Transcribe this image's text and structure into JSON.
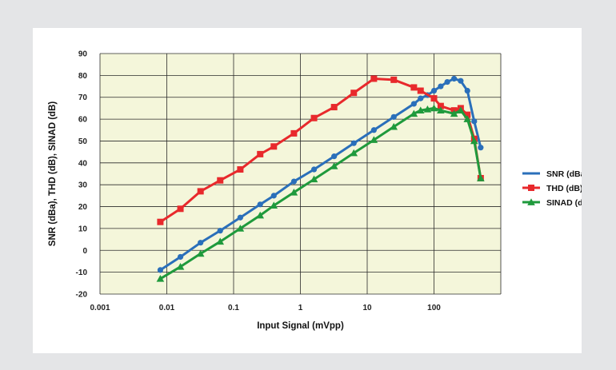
{
  "chart_data": {
    "type": "line",
    "x_scale": "log",
    "xlim": [
      0.001,
      1000
    ],
    "ylim": [
      -20,
      90
    ],
    "grid": true,
    "legend_position": "right",
    "xlabel": "Input Signal (mVpp)",
    "ylabel": "SNR (dBa), THD (dB), SINAD (dB)",
    "x_tick_labels": [
      "0.001",
      "0.01",
      "0.1",
      "1",
      "10",
      "100"
    ],
    "y_tick_labels": [
      "-20",
      "-10",
      "0",
      "10",
      "20",
      "30",
      "40",
      "50",
      "60",
      "70",
      "80",
      "90"
    ],
    "colors": {
      "plot_background": "#f4f6da",
      "grid": "#2b2b2b"
    },
    "series": [
      {
        "name": "SNR (dBa)",
        "color": "#2a6fba",
        "marker": "circle",
        "points": [
          [
            0.008,
            -9
          ],
          [
            0.016,
            -3
          ],
          [
            0.032,
            3.5
          ],
          [
            0.063,
            9
          ],
          [
            0.126,
            15
          ],
          [
            0.25,
            21
          ],
          [
            0.4,
            25
          ],
          [
            0.8,
            31.5
          ],
          [
            1.6,
            37
          ],
          [
            3.2,
            43
          ],
          [
            6.3,
            49
          ],
          [
            12.6,
            55
          ],
          [
            25,
            61
          ],
          [
            50,
            67
          ],
          [
            63,
            69.5
          ],
          [
            80,
            71
          ],
          [
            100,
            73
          ],
          [
            126,
            75
          ],
          [
            158,
            77
          ],
          [
            200,
            78.5
          ],
          [
            251,
            77.5
          ],
          [
            316,
            73
          ],
          [
            400,
            59
          ],
          [
            500,
            47
          ]
        ]
      },
      {
        "name": "THD (dB)",
        "color": "#e8292c",
        "marker": "square",
        "points": [
          [
            0.008,
            13
          ],
          [
            0.016,
            19
          ],
          [
            0.032,
            27
          ],
          [
            0.063,
            32
          ],
          [
            0.126,
            37
          ],
          [
            0.25,
            44
          ],
          [
            0.4,
            47.5
          ],
          [
            0.8,
            53.5
          ],
          [
            1.6,
            60.5
          ],
          [
            3.2,
            65.5
          ],
          [
            6.3,
            72
          ],
          [
            12.6,
            78.5
          ],
          [
            25,
            78
          ],
          [
            50,
            74.5
          ],
          [
            63,
            73
          ],
          [
            100,
            69.5
          ],
          [
            126,
            66
          ],
          [
            200,
            64
          ],
          [
            251,
            65
          ],
          [
            316,
            62
          ],
          [
            400,
            51
          ],
          [
            500,
            33
          ]
        ]
      },
      {
        "name": "SINAD (dB)",
        "color": "#1f9a3c",
        "marker": "triangle",
        "points": [
          [
            0.008,
            -13
          ],
          [
            0.016,
            -7.5
          ],
          [
            0.032,
            -1.5
          ],
          [
            0.063,
            4
          ],
          [
            0.126,
            10
          ],
          [
            0.25,
            16
          ],
          [
            0.4,
            20.5
          ],
          [
            0.8,
            26.5
          ],
          [
            1.6,
            32.5
          ],
          [
            3.2,
            38.5
          ],
          [
            6.3,
            44.5
          ],
          [
            12.6,
            50.5
          ],
          [
            25,
            56.5
          ],
          [
            50,
            62.5
          ],
          [
            63,
            64
          ],
          [
            80,
            64.5
          ],
          [
            100,
            65
          ],
          [
            126,
            64
          ],
          [
            200,
            62.5
          ],
          [
            251,
            64
          ],
          [
            316,
            60
          ],
          [
            400,
            50
          ],
          [
            500,
            33
          ]
        ]
      }
    ]
  }
}
